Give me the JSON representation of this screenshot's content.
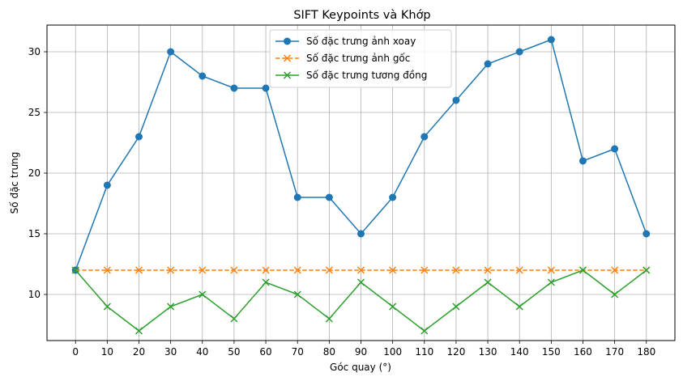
{
  "chart_data": {
    "type": "line",
    "title": "SIFT Keypoints và Khớp",
    "xlabel": "Góc quay (°)",
    "ylabel": "Số đặc trưng",
    "x": [
      0,
      10,
      20,
      30,
      40,
      50,
      60,
      70,
      80,
      90,
      100,
      110,
      120,
      130,
      140,
      150,
      160,
      170,
      180
    ],
    "xticks": [
      0,
      10,
      20,
      30,
      40,
      50,
      60,
      70,
      80,
      90,
      100,
      110,
      120,
      130,
      140,
      150,
      160,
      170,
      180
    ],
    "yticks": [
      10,
      15,
      20,
      25,
      30
    ],
    "xlim": [
      -9,
      189
    ],
    "ylim": [
      6.2,
      32.2
    ],
    "grid": true,
    "legend_position": "top-center",
    "series": [
      {
        "name": "Số đặc trưng ảnh xoay",
        "color": "#1f77b4",
        "marker": "circle",
        "linestyle": "solid",
        "values": [
          12,
          19,
          23,
          30,
          28,
          27,
          27,
          18,
          18,
          15,
          18,
          23,
          26,
          29,
          30,
          31,
          21,
          22,
          15
        ]
      },
      {
        "name": "Số đặc trưng ảnh gốc",
        "color": "#ff7f0e",
        "marker": "x",
        "linestyle": "dashed",
        "values": [
          12,
          12,
          12,
          12,
          12,
          12,
          12,
          12,
          12,
          12,
          12,
          12,
          12,
          12,
          12,
          12,
          12,
          12,
          12
        ]
      },
      {
        "name": "Số đặc trưng tương đồng",
        "color": "#2ca02c",
        "marker": "x",
        "linestyle": "solid",
        "values": [
          12,
          9,
          7,
          9,
          10,
          8,
          11,
          10,
          8,
          11,
          9,
          7,
          9,
          11,
          9,
          11,
          12,
          10,
          12
        ]
      }
    ]
  }
}
